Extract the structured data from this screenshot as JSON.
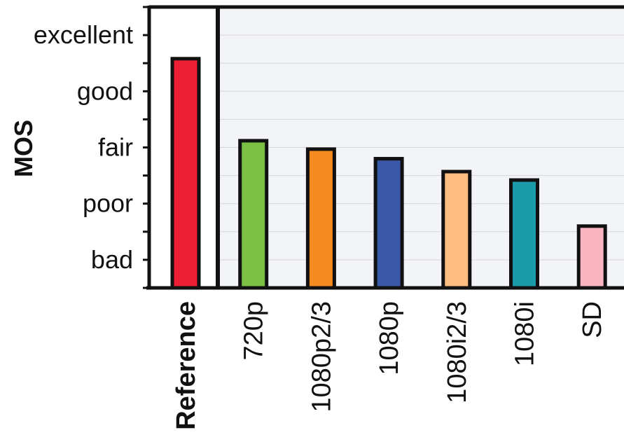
{
  "chart_data": {
    "type": "bar",
    "ylabel": "MOS",
    "xlabel": "",
    "title": "",
    "ylim": [
      0,
      5
    ],
    "y_ticks": [
      {
        "value": 0.5,
        "label": "bad"
      },
      {
        "value": 1.5,
        "label": "poor"
      },
      {
        "value": 2.5,
        "label": "fair"
      },
      {
        "value": 3.5,
        "label": "good"
      },
      {
        "value": 4.5,
        "label": "excellent"
      }
    ],
    "grid": true,
    "categories": [
      "Reference",
      "720p",
      "1080p2/3",
      "1080p",
      "1080i2/3",
      "1080i",
      "SD"
    ],
    "values": [
      4.08,
      2.62,
      2.47,
      2.3,
      2.07,
      1.92,
      1.1
    ],
    "colors": [
      "#ee1f35",
      "#7ac143",
      "#f58a1f",
      "#3b58a8",
      "#fdbe7f",
      "#1b9aaa",
      "#f9b3c1"
    ],
    "highlighted_category": "Reference"
  }
}
